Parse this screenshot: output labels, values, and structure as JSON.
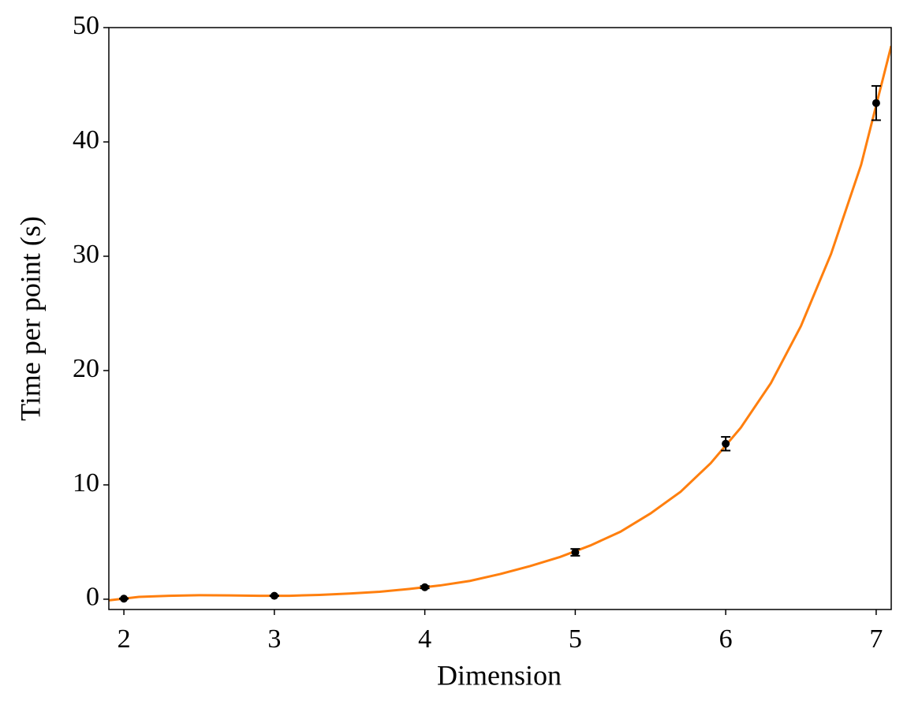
{
  "chart_data": {
    "type": "line",
    "xlabel": "Dimension",
    "ylabel": "Time per point (s)",
    "xlim": [
      1.9,
      7.1
    ],
    "ylim": [
      -0.9,
      50
    ],
    "xticks": [
      2,
      3,
      4,
      5,
      6,
      7
    ],
    "yticks": [
      0,
      10,
      20,
      30,
      40,
      50
    ],
    "grid": false,
    "series": [
      {
        "type": "line",
        "color": "#ff7f0e",
        "x": [
          1.9,
          2.1,
          2.3,
          2.5,
          2.7,
          2.9,
          3.1,
          3.3,
          3.5,
          3.7,
          3.9,
          4.1,
          4.3,
          4.5,
          4.7,
          4.9,
          5.1,
          5.3,
          5.5,
          5.7,
          5.9,
          6.1,
          6.3,
          6.5,
          6.7,
          6.9,
          7.1
        ],
        "values": [
          -0.1,
          0.2,
          0.3,
          0.35,
          0.33,
          0.3,
          0.3,
          0.38,
          0.5,
          0.65,
          0.9,
          1.2,
          1.6,
          2.2,
          2.9,
          3.7,
          4.7,
          5.9,
          7.5,
          9.4,
          11.9,
          15.0,
          18.9,
          23.9,
          30.2,
          38.0,
          48.4
        ]
      },
      {
        "type": "errorbar",
        "color": "#000000",
        "x": [
          2,
          3,
          4,
          5,
          6,
          7
        ],
        "values": [
          0.05,
          0.3,
          1.05,
          4.1,
          13.6,
          43.4
        ],
        "errors": [
          0.02,
          0.03,
          0.1,
          0.3,
          0.6,
          1.5
        ]
      }
    ]
  }
}
